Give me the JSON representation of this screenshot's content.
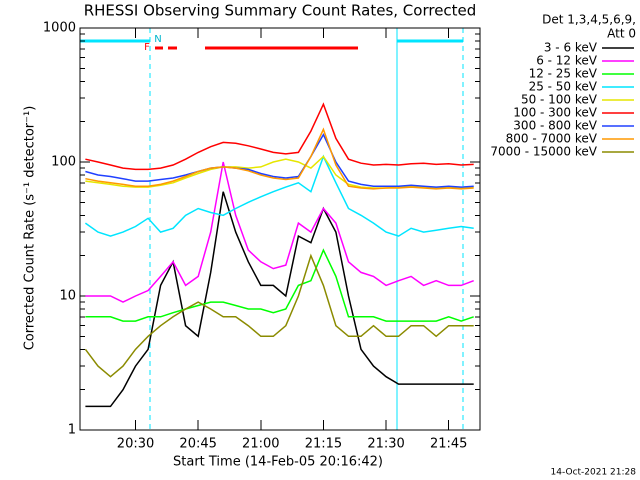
{
  "chart_data": {
    "type": "line",
    "title": "RHESSI Observing Summary Count Rates, Corrected",
    "x_label": "Start Time (14-Feb-05 20:16:42)",
    "y_label": "Corrected Count Rate (s⁻¹ detector⁻¹)",
    "legend_title": [
      "Det 1,3,4,5,6,9,",
      "Att 0"
    ],
    "footer": "14-Oct-2021 21:28",
    "annotations": [
      "F",
      "N"
    ],
    "log_scale_y": true,
    "xlim": [
      1216.7,
      1312.5
    ],
    "ylim": [
      1,
      1000
    ],
    "yticks": [
      1,
      10,
      100,
      1000
    ],
    "xticks": [
      {
        "value": 1230,
        "label": "20:30"
      },
      {
        "value": 1245,
        "label": "20:45"
      },
      {
        "value": 1260,
        "label": "21:00"
      },
      {
        "value": 1275,
        "label": "21:15"
      },
      {
        "value": 1290,
        "label": "21:30"
      },
      {
        "value": 1305,
        "label": "21:45"
      }
    ],
    "x": [
      1218,
      1221,
      1224,
      1227,
      1230,
      1233,
      1236,
      1239,
      1242,
      1245,
      1248,
      1251,
      1254,
      1257,
      1260,
      1263,
      1266,
      1269,
      1272,
      1275,
      1278,
      1281,
      1284,
      1287,
      1290,
      1293,
      1296,
      1299,
      1302,
      1305,
      1308,
      1311
    ],
    "series": [
      {
        "name": "3 - 6 keV",
        "color": "#000000",
        "values": [
          1.5,
          1.5,
          1.5,
          2,
          3,
          4,
          12,
          18,
          6,
          5,
          15,
          60,
          30,
          18,
          12,
          12,
          10,
          28,
          25,
          45,
          30,
          10,
          4,
          3,
          2.5,
          2.2,
          2.2,
          2.2,
          2.2,
          2.2,
          2.2,
          2.2
        ]
      },
      {
        "name": "6 - 12 keV",
        "color": "#ff00ff",
        "values": [
          10,
          10,
          10,
          9,
          10,
          11,
          14,
          18,
          12,
          14,
          30,
          100,
          40,
          22,
          18,
          16,
          17,
          35,
          30,
          45,
          35,
          18,
          15,
          14,
          12,
          13,
          14,
          12,
          13,
          12,
          12,
          13
        ]
      },
      {
        "name": "12 - 25 keV",
        "color": "#00ff00",
        "values": [
          7,
          7,
          7,
          6.5,
          6.5,
          7,
          7,
          7.5,
          8,
          8.5,
          9,
          9,
          8.5,
          8,
          8,
          7.5,
          8,
          12,
          13,
          22,
          14,
          7,
          7,
          7,
          6.5,
          6.5,
          6.5,
          6.5,
          6.5,
          7,
          6.5,
          7
        ]
      },
      {
        "name": "25 - 50 keV",
        "color": "#00e5ff",
        "values": [
          35,
          30,
          28,
          30,
          33,
          38,
          30,
          32,
          40,
          45,
          42,
          40,
          45,
          50,
          55,
          60,
          65,
          70,
          60,
          110,
          70,
          45,
          40,
          35,
          30,
          28,
          32,
          30,
          31,
          32,
          33,
          32
        ]
      },
      {
        "name": "50 - 100 keV",
        "color": "#e6e600",
        "values": [
          72,
          70,
          68,
          66,
          65,
          65,
          67,
          70,
          76,
          82,
          88,
          92,
          92,
          90,
          92,
          100,
          105,
          100,
          90,
          110,
          80,
          68,
          65,
          64,
          64,
          65,
          66,
          65,
          64,
          65,
          64,
          65
        ]
      },
      {
        "name": "100 - 300 keV",
        "color": "#ff0000",
        "values": [
          105,
          100,
          95,
          90,
          88,
          88,
          90,
          95,
          105,
          118,
          130,
          140,
          138,
          132,
          125,
          118,
          115,
          118,
          170,
          270,
          150,
          105,
          98,
          95,
          96,
          95,
          97,
          98,
          96,
          97,
          95,
          96
        ]
      },
      {
        "name": "300 - 800 keV",
        "color": "#2040ff",
        "values": [
          85,
          80,
          78,
          75,
          72,
          72,
          74,
          76,
          80,
          85,
          90,
          92,
          90,
          88,
          82,
          78,
          76,
          78,
          110,
          160,
          100,
          72,
          68,
          66,
          66,
          66,
          67,
          66,
          65,
          66,
          65,
          66
        ]
      },
      {
        "name": "800 - 7000 keV",
        "color": "#ff9900",
        "values": [
          75,
          72,
          70,
          68,
          66,
          66,
          68,
          72,
          78,
          85,
          90,
          92,
          90,
          86,
          80,
          76,
          74,
          76,
          110,
          175,
          95,
          66,
          64,
          63,
          64,
          64,
          65,
          64,
          63,
          64,
          63,
          64
        ]
      },
      {
        "name": "7000 - 15000 keV",
        "color": "#8b8b00",
        "values": [
          4,
          3,
          2.5,
          3,
          4,
          5,
          6,
          7,
          8,
          9,
          8,
          7,
          7,
          6,
          5,
          5,
          6,
          10,
          20,
          12,
          6,
          5,
          5,
          6,
          5,
          5,
          6,
          6,
          5,
          6,
          6,
          6
        ]
      }
    ]
  }
}
